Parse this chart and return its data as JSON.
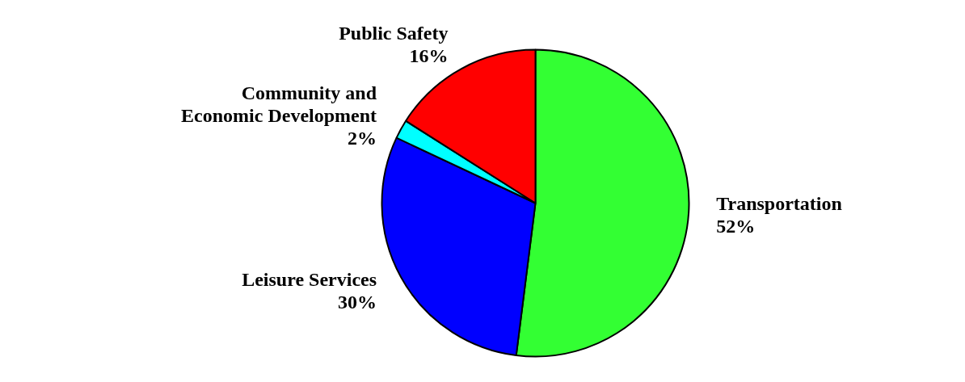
{
  "chart_data": {
    "type": "pie",
    "categories": [
      "Transportation",
      "Leisure Services",
      "Community and Economic Development",
      "Public Safety"
    ],
    "values": [
      52,
      30,
      2,
      16
    ],
    "colors": [
      "#33ff33",
      "#0000ff",
      "#00ffff",
      "#ff0000"
    ],
    "value_labels": [
      "52%",
      "30%",
      "2%",
      "16%"
    ],
    "legend": false
  }
}
